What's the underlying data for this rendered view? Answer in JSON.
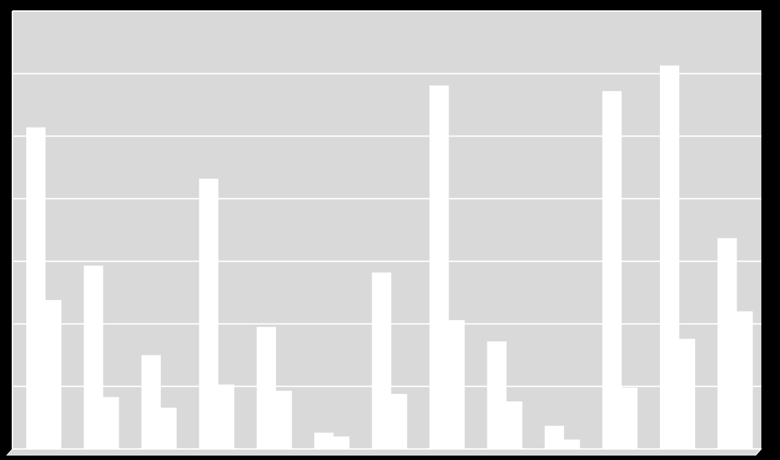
{
  "chart_data": {
    "type": "bar",
    "categories": [
      null,
      null,
      null,
      null,
      null,
      null,
      null,
      null,
      null,
      null,
      null,
      null,
      null
    ],
    "series": [
      {
        "color": "#ffffff",
        "values": [
          5.14,
          2.93,
          1.5,
          4.32,
          1.95,
          0.26,
          2.82,
          5.81,
          1.72,
          0.37,
          5.72,
          6.13,
          3.37
        ]
      },
      {
        "color": "#ffffff",
        "values": [
          2.38,
          0.83,
          0.66,
          1.03,
          0.93,
          0.2,
          0.88,
          2.06,
          0.76,
          0.15,
          0.98,
          1.76,
          2.2
        ]
      }
    ],
    "ylim": [
      0,
      7
    ],
    "yticks": [
      0,
      1,
      2,
      3,
      4,
      5,
      6,
      7
    ],
    "grid": true
  }
}
